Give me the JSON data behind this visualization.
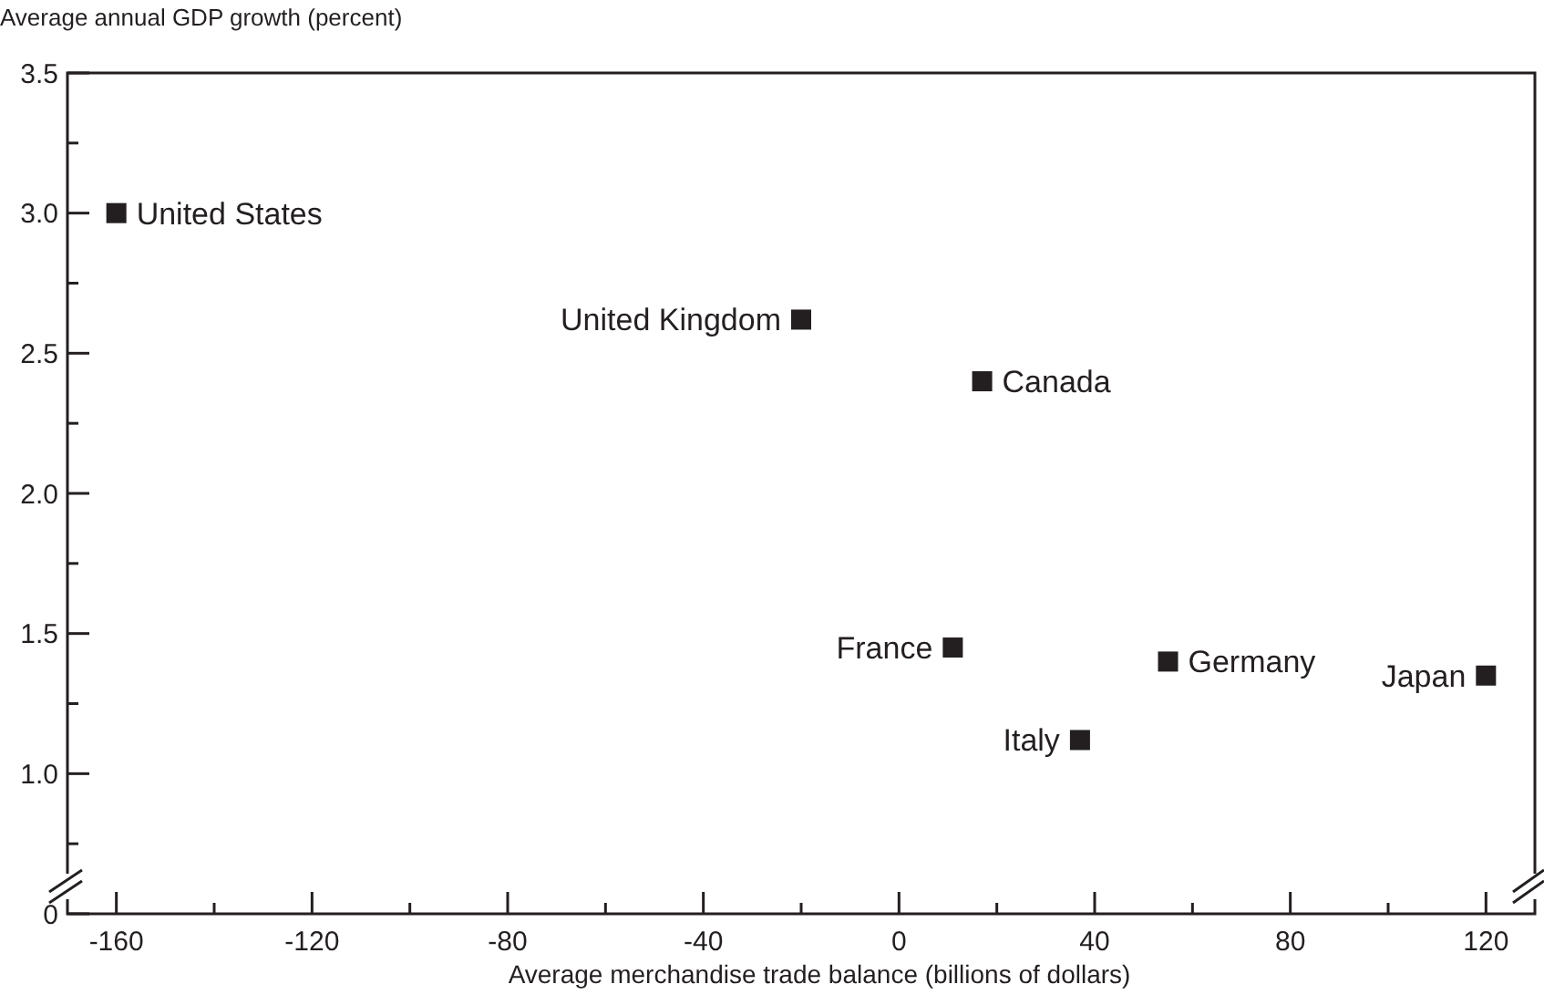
{
  "chart_data": {
    "type": "scatter",
    "ylabel": "Average annual GDP growth (percent)",
    "xlabel": "Average merchandise trade balance (billions of dollars)",
    "marker": "square",
    "grid": false,
    "xlim": [
      -170,
      130
    ],
    "xticks": [
      -160,
      {
        "value": -140,
        "label": null
      },
      -120,
      {
        "value": -100,
        "label": null
      },
      -80,
      {
        "value": -60,
        "label": null
      },
      -40,
      {
        "value": -20,
        "label": null
      },
      0,
      {
        "value": 20,
        "label": null
      },
      40,
      {
        "value": 60,
        "label": null
      },
      80,
      {
        "value": 100,
        "label": null
      },
      120
    ],
    "ylim": [
      0.5,
      3.5
    ],
    "yticks": [
      {
        "value": 0.5,
        "label": "0"
      },
      {
        "value": 0.75,
        "label": null
      },
      "1.0",
      {
        "value": 1.25,
        "label": null
      },
      {
        "value": 1.5,
        "label": "1.5"
      },
      {
        "value": 1.75,
        "label": null
      },
      {
        "value": 2,
        "label": "2.0"
      },
      {
        "value": 2.25,
        "label": null
      },
      {
        "value": 2.5,
        "label": "2.5"
      },
      {
        "value": 2.75,
        "label": null
      },
      {
        "value": 3,
        "label": "3.0"
      },
      {
        "value": 3.25,
        "label": null
      },
      {
        "value": 3.5,
        "label": "3.5"
      }
    ],
    "series": [
      {
        "name": "United States",
        "color": "#231f20",
        "x": [
          -160
        ],
        "values": [
          3.0
        ]
      },
      {
        "name": "United Kingdom",
        "color": "#231f20",
        "x": [
          -20
        ],
        "values": [
          2.62
        ]
      },
      {
        "name": "Canada",
        "color": "#231f20",
        "x": [
          17
        ],
        "values": [
          2.4
        ]
      },
      {
        "name": "France",
        "color": "#231f20",
        "x": [
          11
        ],
        "values": [
          1.45
        ]
      },
      {
        "name": "Italy",
        "color": "#231f20",
        "x": [
          37
        ],
        "values": [
          1.12
        ]
      },
      {
        "name": "Germany",
        "color": "#231f20",
        "x": [
          55
        ],
        "values": [
          1.4
        ]
      },
      {
        "name": "Japan",
        "color": "#231f20",
        "x": [
          120
        ],
        "values": [
          1.35
        ]
      }
    ]
  }
}
